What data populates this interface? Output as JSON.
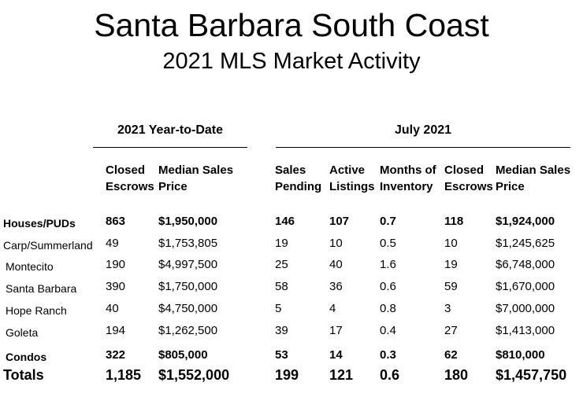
{
  "title": "Santa Barbara South Coast",
  "subtitle": "2021 MLS Market Activity",
  "groups": {
    "ytd": "2021 Year-to-Date",
    "month": "July 2021"
  },
  "columns": {
    "ytd_closed": [
      "Closed",
      "Escrows"
    ],
    "ytd_median": [
      "Median Sales",
      "Price"
    ],
    "pending": [
      "Sales",
      "Pending"
    ],
    "active": [
      "Active",
      "Listings"
    ],
    "inventory": [
      "Months of",
      "Inventory"
    ],
    "m_closed": [
      "Closed",
      "Escrows"
    ],
    "m_median": [
      "Median Sales",
      "Price"
    ]
  },
  "rows": [
    {
      "label": "Houses/PUDs",
      "bold": true,
      "values": [
        "863",
        "$1,950,000",
        "146",
        "107",
        "0.7",
        "118",
        "$1,924,000"
      ]
    },
    {
      "label": "Carp/Summerland",
      "bold": false,
      "values": [
        "49",
        "$1,753,805",
        "19",
        "10",
        "0.5",
        "10",
        "$1,245,625"
      ]
    },
    {
      "label": "Montecito",
      "bold": false,
      "values": [
        "190",
        "$4,997,500",
        "25",
        "40",
        "1.6",
        "19",
        "$6,748,000"
      ]
    },
    {
      "label": "Santa Barbara",
      "bold": false,
      "values": [
        "390",
        "$1,750,000",
        "58",
        "36",
        "0.6",
        "59",
        "$1,670,000"
      ]
    },
    {
      "label": "Hope Ranch",
      "bold": false,
      "values": [
        "40",
        "$4,750,000",
        "5",
        "4",
        "0.8",
        "3",
        "$7,000,000"
      ]
    },
    {
      "label": "Goleta",
      "bold": false,
      "values": [
        "194",
        "$1,262,500",
        "39",
        "17",
        "0.4",
        "27",
        "$1,413,000"
      ]
    },
    {
      "label": "Condos",
      "bold": true,
      "values": [
        "322",
        "$805,000",
        "53",
        "14",
        "0.3",
        "62",
        "$810,000"
      ]
    },
    {
      "label": "Totals",
      "bold": true,
      "values": [
        "1,185",
        "$1,552,000",
        "199",
        "121",
        "0.6",
        "180",
        "$1,457,750"
      ]
    }
  ]
}
